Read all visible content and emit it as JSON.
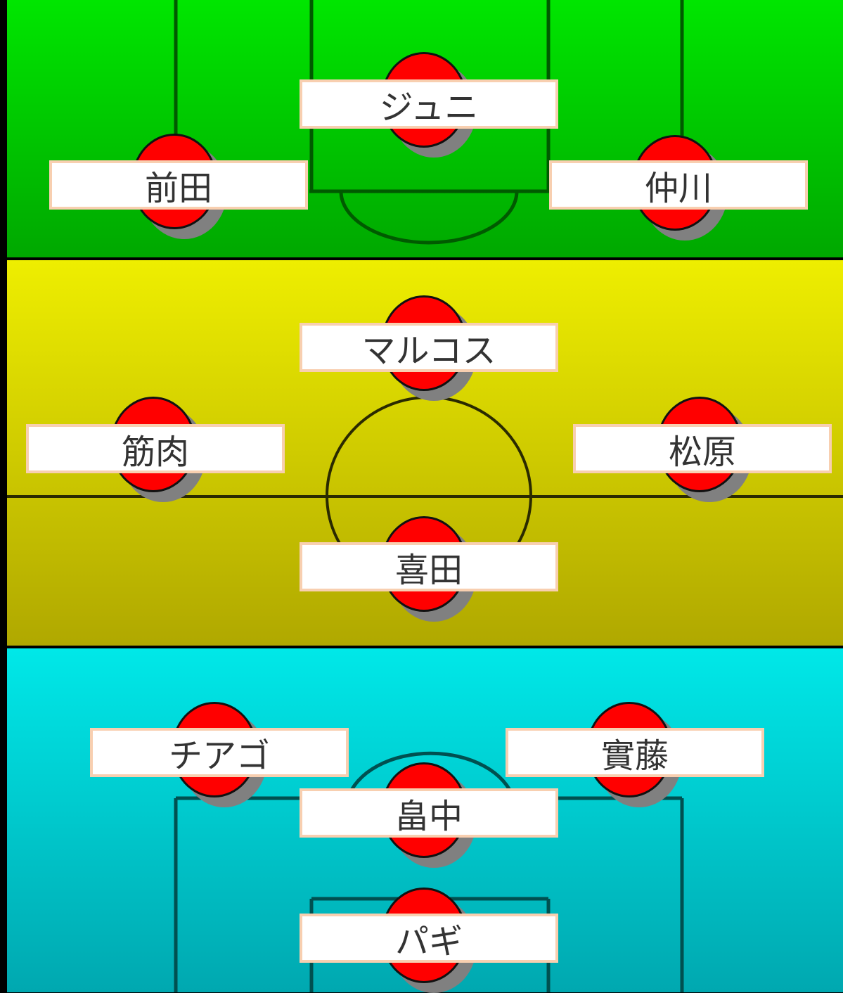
{
  "colors": {
    "forward_zone": "#00d000",
    "midfield_zone": "#dcd800",
    "defense_zone": "#00d8d8",
    "player_disc": "#ff0000",
    "label_border": "#f8cfb0"
  },
  "players": [
    {
      "name": "ジュニ",
      "zone": "forward"
    },
    {
      "name": "前田",
      "zone": "forward"
    },
    {
      "name": "仲川",
      "zone": "forward"
    },
    {
      "name": "マルコス",
      "zone": "midfield"
    },
    {
      "name": "筋肉",
      "zone": "midfield"
    },
    {
      "name": "松原",
      "zone": "midfield"
    },
    {
      "name": "喜田",
      "zone": "midfield"
    },
    {
      "name": "チアゴ",
      "zone": "defense"
    },
    {
      "name": "實藤",
      "zone": "defense"
    },
    {
      "name": "畠中",
      "zone": "defense"
    },
    {
      "name": "パギ",
      "zone": "goalkeeper"
    }
  ]
}
